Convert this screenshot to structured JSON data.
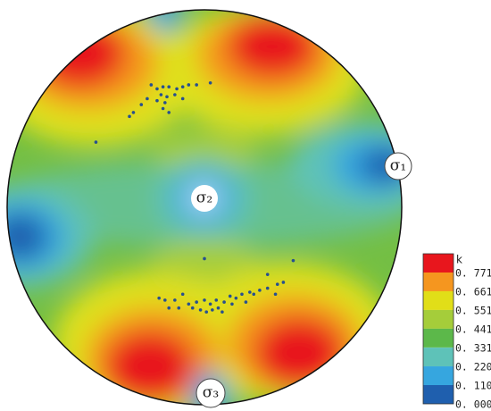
{
  "chart_data": {
    "type": "scatter",
    "x": [
      -0.27,
      -0.24,
      -0.21,
      -0.18,
      -0.14,
      -0.11,
      -0.08,
      -0.04,
      0.03,
      -0.22,
      -0.19,
      -0.15,
      -0.24,
      -0.29,
      -0.32,
      -0.36,
      -0.38,
      -0.21,
      -0.18,
      -0.55,
      -0.11,
      -0.2,
      -0.23,
      -0.2,
      -0.15,
      -0.11,
      -0.08,
      -0.04,
      0.0,
      0.03,
      0.06,
      0.1,
      0.13,
      0.16,
      0.19,
      0.23,
      0.28,
      0.32,
      0.37,
      0.4,
      0.45,
      0.32,
      -0.06,
      -0.02,
      0.04,
      0.07,
      -0.18,
      0.0,
      0.14,
      0.21,
      0.25,
      -0.13,
      0.01,
      0.09,
      0.36
    ],
    "values": [
      0.62,
      0.6,
      0.61,
      0.61,
      0.6,
      0.61,
      0.62,
      0.62,
      0.63,
      0.57,
      0.56,
      0.57,
      0.54,
      0.55,
      0.52,
      0.48,
      0.46,
      0.5,
      0.48,
      0.33,
      0.55,
      0.53,
      -0.46,
      -0.47,
      -0.47,
      -0.44,
      -0.49,
      -0.48,
      -0.47,
      -0.49,
      -0.47,
      -0.48,
      -0.45,
      -0.46,
      -0.44,
      -0.43,
      -0.42,
      -0.41,
      -0.39,
      -0.38,
      -0.27,
      -0.34,
      -0.51,
      -0.52,
      -0.52,
      -0.51,
      -0.51,
      -0.26,
      -0.49,
      -0.48,
      -0.44,
      -0.51,
      -0.53,
      -0.53,
      -0.44
    ],
    "color": "#27508f",
    "xlim": [
      -1,
      1
    ],
    "ylim": [
      -1,
      1
    ],
    "annotations": [
      "σ₁",
      "σ₂",
      "σ₃"
    ],
    "colorbar": {
      "label": "k",
      "ticks": [
        {
          "value": 0.771,
          "label": "0. 771"
        },
        {
          "value": 0.661,
          "label": "0. 661"
        },
        {
          "value": 0.551,
          "label": "0. 551"
        },
        {
          "value": 0.441,
          "label": "0. 441"
        },
        {
          "value": 0.331,
          "label": "0. 331"
        },
        {
          "value": 0.22,
          "label": "0. 220"
        },
        {
          "value": 0.11,
          "label": "0. 110"
        },
        {
          "value": 0.0,
          "label": "0. 000"
        }
      ],
      "colors": [
        "#e8161d",
        "#f5961f",
        "#e1de18",
        "#a5cd3a",
        "#5cb84a",
        "#5ec2b8",
        "#36a6df",
        "#1f5fae"
      ]
    }
  }
}
